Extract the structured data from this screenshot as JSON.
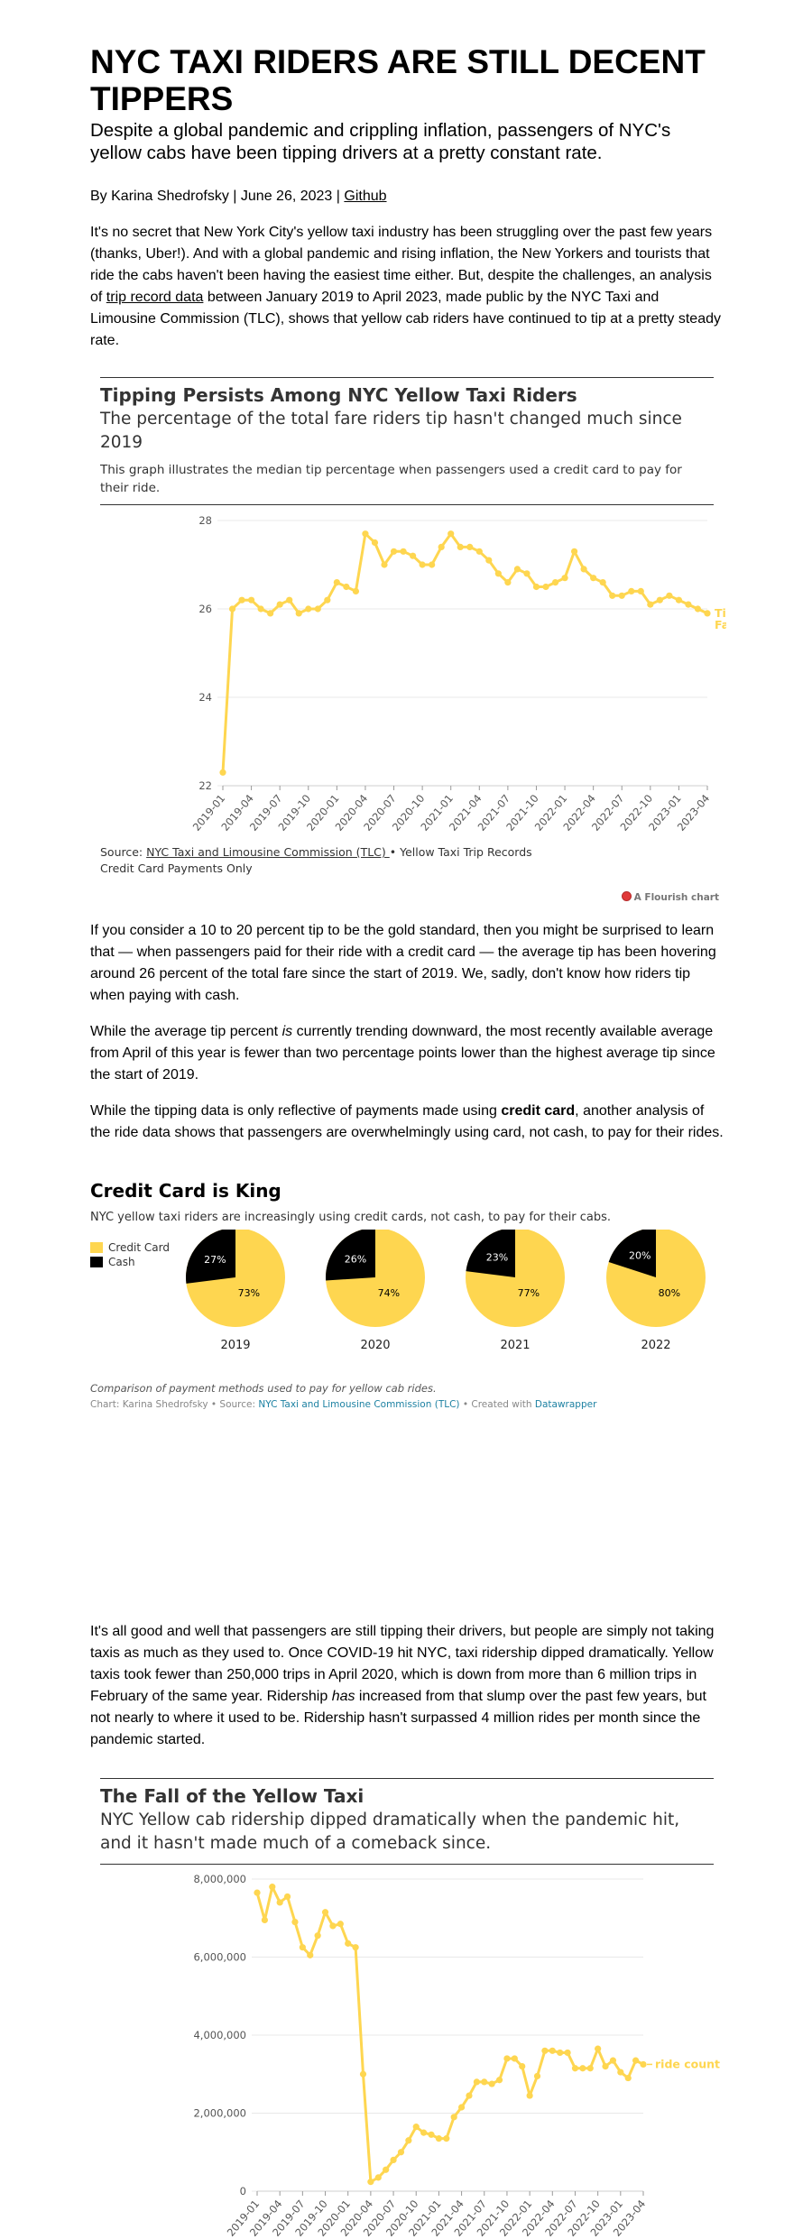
{
  "article": {
    "headline": "NYC TAXI RIDERS ARE STILL DECENT TIPPERS",
    "subtitle": "Despite a global pandemic and crippling inflation, passengers of NYC's yellow cabs have been tipping drivers at a pretty constant rate.",
    "byline_prefix": "By Karina Shedrofsky | June 26, 2023 | ",
    "github_link": "Github",
    "intro_before_link": "It's no secret that New York City's yellow taxi industry has been struggling over the past few years (thanks, Uber!). And with a global pandemic and rising inflation, the New Yorkers and tourists that ride the cabs haven't been having the easiest time either. But, despite the challenges, an analysis of ",
    "intro_link": "trip record data",
    "intro_after_link": " between January 2019 to April 2023, made public by the NYC Taxi and Limousine Commission (TLC), shows that yellow cab riders have continued to tip at a pretty steady rate.",
    "para2": "If you consider a 10 to 20 percent tip to be the gold standard, then you might be surprised to learn that — when passengers paid for their ride with a credit card — the average tip has been hovering around 26 percent of the total fare since the start of 2019. We, sadly, don't know how riders tip when paying with cash.",
    "para3_before": "While the average tip percent ",
    "para3_em": "is",
    "para3_after": " currently trending downward, the most recently available average from April of this year is fewer than two percentage points lower than the highest average tip since the start of 2019.",
    "para4_before": "While the tipping data is only reflective of payments made using ",
    "para4_bold": "credit card",
    "para4_after": ", another analysis of the ride data shows that passengers are overwhelmingly using card, not cash, to pay for their rides.",
    "para5_before": "It's all good and well that passengers are still tipping their drivers, but people are simply not taking taxis as much as they used to. Once COVID-19 hit NYC, taxi ridership dipped dramatically. Yellow taxis took fewer than 250,000 trips in April 2020, which is down from more than 6 million trips in February of the same year. Ridership ",
    "para5_em": "has",
    "para5_after": " increased from that slump over the past few years, but not nearly to where it used to be. Ridership hasn't surpassed 4 million rides per month since the pandemic started."
  },
  "tip_chart": {
    "title": "Tipping Persists Among NYC Yellow Taxi Riders",
    "subtitle": "The percentage of the total fare riders tip hasn't changed much since 2019",
    "note": "This graph illustrates the median tip percentage when passengers used a credit card to pay for their ride.",
    "source_prefix": "Source: ",
    "source_link": "NYC Taxi and Limousine Commission (TLC) ",
    "source_suffix": "• Yellow Taxi Trip Records",
    "source_line2": "Credit Card Payments Only",
    "badge": "A Flourish chart",
    "series_label_line1": "Tip % of Total",
    "series_label_line2": "Fare"
  },
  "pies": {
    "title": "Credit Card is King",
    "description": "NYC yellow taxi riders are increasingly using credit cards, not cash, to pay for their cabs.",
    "legend": [
      {
        "label": "Credit Card",
        "color": "#fed650"
      },
      {
        "label": "Cash",
        "color": "#000000"
      }
    ],
    "years": [
      {
        "year": "2019",
        "credit": "73%",
        "cash": "27%",
        "credit_value": 73
      },
      {
        "year": "2020",
        "credit": "74%",
        "cash": "26%",
        "credit_value": 74
      },
      {
        "year": "2021",
        "credit": "77%",
        "cash": "23%",
        "credit_value": 77
      },
      {
        "year": "2022",
        "credit": "80%",
        "cash": "20%",
        "credit_value": 80
      }
    ],
    "caption": "Comparison of payment methods used to pay for yellow cab rides.",
    "credit_prefix": "Chart: Karina Shedrofsky • Source: ",
    "credit_source": "NYC Taxi and Limousine Commission (TLC)",
    "credit_mid": " • Created with ",
    "credit_tool": "Datawrapper"
  },
  "rides_chart": {
    "title": "The Fall of the Yellow Taxi",
    "subtitle": "NYC Yellow cab ridership dipped dramatically when the pandemic hit, and it hasn't made much of a comeback since.",
    "series_label": "ride count"
  },
  "colors": {
    "series": "#fed650",
    "rule": "#333333",
    "link": "#1d81a2"
  },
  "chart_data": [
    {
      "type": "line",
      "title": "Tipping Persists Among NYC Yellow Taxi Riders",
      "ylim": [
        22,
        28
      ],
      "y_ticks": [
        "22",
        "24",
        "26",
        "28"
      ],
      "x_ticks": [
        "2019-01",
        "2019-04",
        "2019-07",
        "2019-10",
        "2020-01",
        "2020-04",
        "2020-07",
        "2020-10",
        "2021-01",
        "2021-04",
        "2021-07",
        "2021-10",
        "2022-01",
        "2022-04",
        "2022-07",
        "2022-10",
        "2023-01",
        "2023-04"
      ],
      "series": [
        {
          "name": "Tip % of Total Fare",
          "x": [
            "2019-01",
            "2019-02",
            "2019-03",
            "2019-04",
            "2019-05",
            "2019-06",
            "2019-07",
            "2019-08",
            "2019-09",
            "2019-10",
            "2019-11",
            "2019-12",
            "2020-01",
            "2020-02",
            "2020-03",
            "2020-04",
            "2020-05",
            "2020-06",
            "2020-07",
            "2020-08",
            "2020-09",
            "2020-10",
            "2020-11",
            "2020-12",
            "2021-01",
            "2021-02",
            "2021-03",
            "2021-04",
            "2021-05",
            "2021-06",
            "2021-07",
            "2021-08",
            "2021-09",
            "2021-10",
            "2021-11",
            "2021-12",
            "2022-01",
            "2022-02",
            "2022-03",
            "2022-04",
            "2022-05",
            "2022-06",
            "2022-07",
            "2022-08",
            "2022-09",
            "2022-10",
            "2022-11",
            "2022-12",
            "2023-01",
            "2023-02",
            "2023-03",
            "2023-04"
          ],
          "values": [
            22.3,
            26.0,
            26.2,
            26.2,
            26.0,
            25.9,
            26.1,
            26.2,
            25.9,
            26.0,
            26.0,
            26.2,
            26.6,
            26.5,
            26.4,
            27.7,
            27.5,
            27.0,
            27.3,
            27.3,
            27.2,
            27.0,
            27.0,
            27.4,
            27.7,
            27.4,
            27.4,
            27.3,
            27.1,
            26.8,
            26.6,
            26.9,
            26.8,
            26.5,
            26.5,
            26.6,
            26.7,
            27.3,
            26.9,
            26.7,
            26.6,
            26.3,
            26.3,
            26.4,
            26.4,
            26.1,
            26.2,
            26.3,
            26.2,
            26.1,
            26.0,
            25.9
          ]
        }
      ]
    },
    {
      "type": "pie",
      "title": "Credit Card is King",
      "categories": [
        "Credit Card",
        "Cash"
      ],
      "series": [
        {
          "name": "2019",
          "values": [
            73,
            27
          ]
        },
        {
          "name": "2020",
          "values": [
            74,
            26
          ]
        },
        {
          "name": "2021",
          "values": [
            77,
            23
          ]
        },
        {
          "name": "2022",
          "values": [
            80,
            20
          ]
        }
      ]
    },
    {
      "type": "line",
      "title": "The Fall of the Yellow Taxi",
      "ylim": [
        0,
        8000000
      ],
      "y_ticks": [
        "0",
        "2,000,000",
        "4,000,000",
        "6,000,000",
        "8,000,000"
      ],
      "x_ticks": [
        "2019-01",
        "2019-04",
        "2019-07",
        "2019-10",
        "2020-01",
        "2020-04",
        "2020-07",
        "2020-10",
        "2021-01",
        "2021-04",
        "2021-07",
        "2021-10",
        "2022-01",
        "2022-04",
        "2022-07",
        "2022-10",
        "2023-01",
        "2023-04"
      ],
      "series": [
        {
          "name": "ride count",
          "x": [
            "2019-01",
            "2019-02",
            "2019-03",
            "2019-04",
            "2019-05",
            "2019-06",
            "2019-07",
            "2019-08",
            "2019-09",
            "2019-10",
            "2019-11",
            "2019-12",
            "2020-01",
            "2020-02",
            "2020-03",
            "2020-04",
            "2020-05",
            "2020-06",
            "2020-07",
            "2020-08",
            "2020-09",
            "2020-10",
            "2020-11",
            "2020-12",
            "2021-01",
            "2021-02",
            "2021-03",
            "2021-04",
            "2021-05",
            "2021-06",
            "2021-07",
            "2021-08",
            "2021-09",
            "2021-10",
            "2021-11",
            "2021-12",
            "2022-01",
            "2022-02",
            "2022-03",
            "2022-04",
            "2022-05",
            "2022-06",
            "2022-07",
            "2022-08",
            "2022-09",
            "2022-10",
            "2022-11",
            "2022-12",
            "2023-01",
            "2023-02",
            "2023-03",
            "2023-04"
          ],
          "values": [
            7650000,
            6950000,
            7800000,
            7400000,
            7550000,
            6900000,
            6250000,
            6050000,
            6550000,
            7150000,
            6800000,
            6850000,
            6350000,
            6250000,
            3000000,
            240000,
            350000,
            550000,
            800000,
            1000000,
            1300000,
            1650000,
            1500000,
            1450000,
            1350000,
            1350000,
            1900000,
            2150000,
            2450000,
            2800000,
            2800000,
            2750000,
            2850000,
            3400000,
            3400000,
            3200000,
            2450000,
            2950000,
            3600000,
            3600000,
            3550000,
            3550000,
            3150000,
            3150000,
            3150000,
            3650000,
            3200000,
            3350000,
            3050000,
            2900000,
            3350000,
            3250000
          ]
        }
      ]
    }
  ]
}
